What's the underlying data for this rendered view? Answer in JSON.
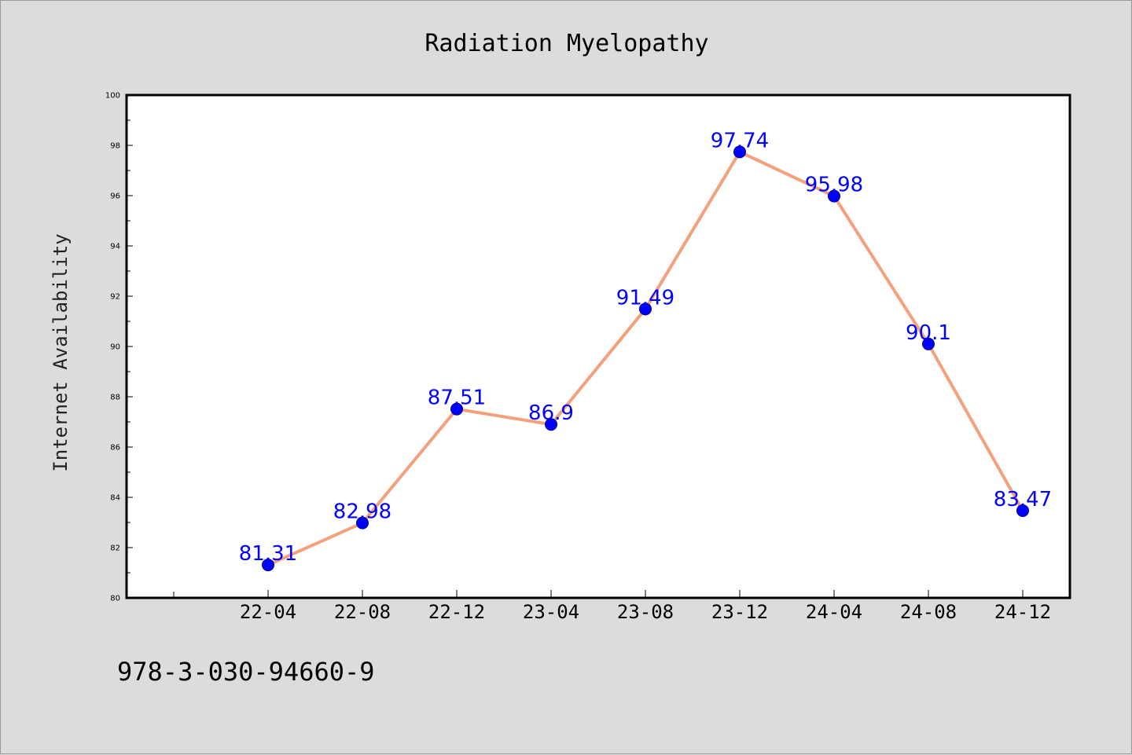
{
  "chart_data": {
    "type": "line",
    "title": "Radiation Myelopathy",
    "xlabel": "",
    "ylabel": "Internet Availability",
    "categories": [
      "22-04",
      "22-08",
      "22-12",
      "23-04",
      "23-08",
      "23-12",
      "24-04",
      "24-08",
      "24-12"
    ],
    "series": [
      {
        "values": [
          81.31,
          82.98,
          87.51,
          86.9,
          91.49,
          97.74,
          95.98,
          90.1,
          83.47
        ],
        "data_labels": [
          "81.31",
          "82.98",
          "87.51",
          "86.9",
          "91.49",
          "97.74",
          "95.98",
          "90.1",
          "83.47"
        ]
      }
    ],
    "ylim": [
      80,
      100
    ],
    "yticks": [
      "80",
      "82",
      "84",
      "86",
      "88",
      "90",
      "92",
      "94",
      "96",
      "98",
      "100"
    ],
    "grid": false,
    "legend": "none",
    "colors": {
      "line": "#f4a07c",
      "marker": "#0000ff",
      "data_label": "#0000ff",
      "figure_background": "#dcdcdc",
      "plot_background": "#ffffff"
    }
  },
  "footer": {
    "identifier": "978-3-030-94660-9"
  }
}
